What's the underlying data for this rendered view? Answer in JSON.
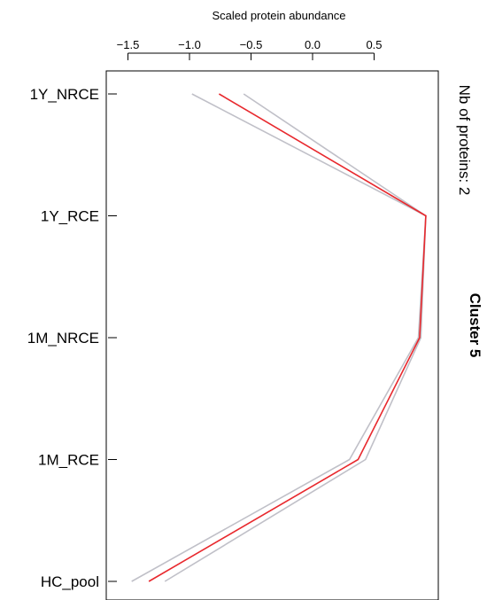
{
  "chart_data": {
    "type": "line",
    "orientation": "horizontal-values",
    "xlabel": "Scaled protein abundance",
    "xlim": [
      -1.55,
      1.0
    ],
    "xticks": [
      -1.5,
      -1.0,
      -0.5,
      0.0,
      0.5
    ],
    "xtick_labels": [
      "−1.5",
      "−1.0",
      "−0.5",
      "0.0",
      "0.5"
    ],
    "categories": [
      "1Y_NRCE",
      "1Y_RCE",
      "1M_NRCE",
      "1M_RCE",
      "HC_pool"
    ],
    "series": [
      {
        "values": [
          -0.56,
          0.92,
          0.88,
          0.43,
          -1.2
        ],
        "color": "#c0c0c8"
      },
      {
        "values": [
          -0.98,
          0.92,
          0.86,
          0.3,
          -1.47
        ],
        "color": "#c0c0c8"
      },
      {
        "values": [
          -0.76,
          0.92,
          0.87,
          0.37,
          -1.33
        ],
        "color": "#e8292e"
      }
    ],
    "side_labels": {
      "count": "Nb of proteins: 2",
      "cluster": "Cluster 5"
    }
  }
}
